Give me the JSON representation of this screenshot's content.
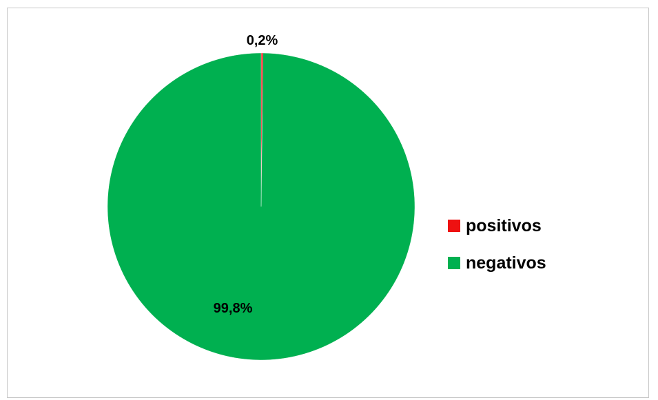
{
  "chart_data": {
    "type": "pie",
    "categories": [
      "positivos",
      "negativos"
    ],
    "values": [
      0.2,
      99.8
    ],
    "data_labels": [
      "0,2%",
      "99,8%"
    ],
    "colors": [
      "#ee1111",
      "#00b050"
    ],
    "legend_position": "right"
  }
}
